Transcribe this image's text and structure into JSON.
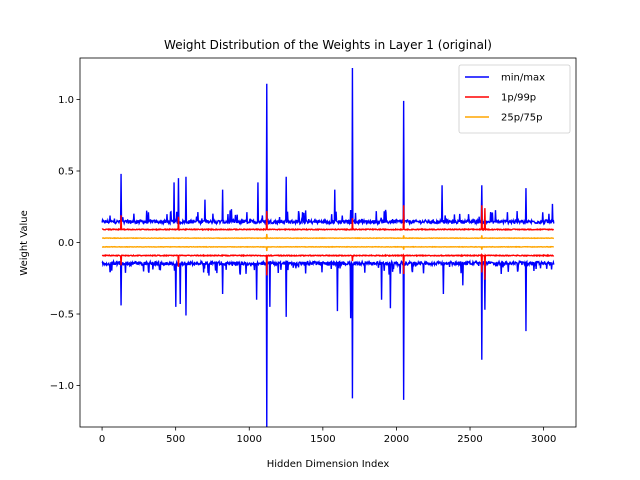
{
  "chart_data": {
    "type": "line",
    "title": "Weight Distribution of the Weights in Layer 1 (original)",
    "xlabel": "Hidden Dimension Index",
    "ylabel": "Weight Value",
    "xlim": [
      -150,
      3220
    ],
    "ylim": [
      -1.29,
      1.29
    ],
    "x_count": 3072,
    "xticks": [
      0,
      500,
      1000,
      1500,
      2000,
      2500,
      3000
    ],
    "yticks": [
      -1.0,
      -0.5,
      0.0,
      0.5,
      1.0
    ],
    "xtick_labels": [
      "0",
      "500",
      "1000",
      "1500",
      "2000",
      "2500",
      "3000"
    ],
    "ytick_labels": [
      "−1.0",
      "−0.5",
      "0.0",
      "0.5",
      "1.0"
    ],
    "grid": false,
    "legend_position": "top-right",
    "series": [
      {
        "name": "min/max",
        "color": "#0000ff",
        "baseline_max": 0.14,
        "baseline_min": -0.14,
        "spikes_max": [
          [
            130,
            0.48
          ],
          [
            490,
            0.42
          ],
          [
            520,
            0.45
          ],
          [
            570,
            0.46
          ],
          [
            700,
            0.3
          ],
          [
            820,
            0.37
          ],
          [
            1060,
            0.42
          ],
          [
            1120,
            1.11
          ],
          [
            1250,
            0.46
          ],
          [
            1580,
            0.37
          ],
          [
            1700,
            1.22
          ],
          [
            2050,
            0.99
          ],
          [
            2310,
            0.4
          ],
          [
            2580,
            0.4
          ],
          [
            2880,
            0.38
          ],
          [
            3060,
            0.27
          ]
        ],
        "spikes_min": [
          [
            130,
            -0.44
          ],
          [
            500,
            -0.45
          ],
          [
            530,
            -0.43
          ],
          [
            570,
            -0.51
          ],
          [
            820,
            -0.36
          ],
          [
            1050,
            -0.4
          ],
          [
            1120,
            -1.29
          ],
          [
            1140,
            -0.45
          ],
          [
            1250,
            -0.52
          ],
          [
            1600,
            -0.48
          ],
          [
            1690,
            -0.53
          ],
          [
            1700,
            -1.09
          ],
          [
            1900,
            -0.4
          ],
          [
            1960,
            -0.46
          ],
          [
            2050,
            -1.1
          ],
          [
            2320,
            -0.36
          ],
          [
            2450,
            -0.3
          ],
          [
            2580,
            -0.82
          ],
          [
            2600,
            -0.47
          ],
          [
            2880,
            -0.62
          ]
        ]
      },
      {
        "name": "1p/99p",
        "color": "#ff0000",
        "baseline_max": 0.09,
        "baseline_min": -0.09,
        "spikes_max": [
          [
            130,
            0.19
          ],
          [
            520,
            0.18
          ],
          [
            1120,
            0.22
          ],
          [
            1700,
            0.17
          ],
          [
            2050,
            0.26
          ],
          [
            2580,
            0.26
          ],
          [
            2600,
            0.24
          ]
        ],
        "spikes_min": [
          [
            130,
            -0.16
          ],
          [
            520,
            -0.17
          ],
          [
            1120,
            -0.23
          ],
          [
            1700,
            -0.13
          ],
          [
            2050,
            -0.22
          ],
          [
            2580,
            -0.21
          ],
          [
            2600,
            -0.26
          ]
        ]
      },
      {
        "name": "25p/75p",
        "color": "#ffa500",
        "baseline_max": 0.03,
        "baseline_min": -0.03,
        "spikes_max": [
          [
            1120,
            0.06
          ],
          [
            2050,
            0.05
          ],
          [
            2580,
            0.05
          ]
        ],
        "spikes_min": [
          [
            1120,
            -0.06
          ],
          [
            2050,
            -0.05
          ],
          [
            2580,
            -0.05
          ]
        ]
      }
    ]
  }
}
